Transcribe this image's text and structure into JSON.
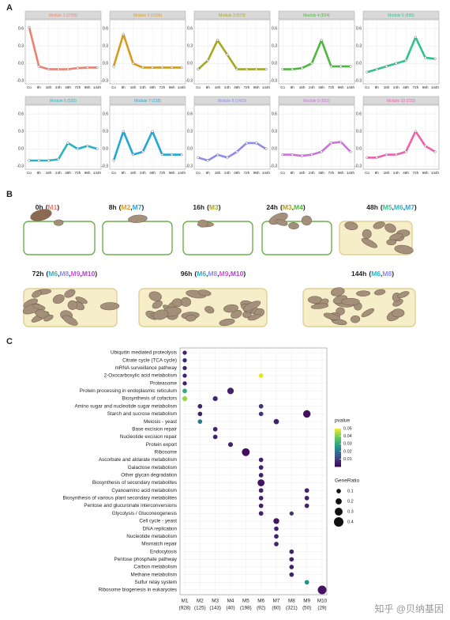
{
  "panel_labels": [
    "A",
    "B",
    "C"
  ],
  "chart_data": [
    {
      "type": "line",
      "title": "Module 1 (2783)",
      "categories": [
        "Co",
        "8h",
        "16h",
        "24h",
        "48h",
        "72h",
        "96h",
        "144h"
      ],
      "series": [
        {
          "color": "#f08070",
          "values": [
            0.62,
            -0.05,
            -0.1,
            -0.1,
            -0.1,
            -0.08,
            -0.07,
            -0.07
          ]
        }
      ],
      "ylim": [
        -0.35,
        0.75
      ],
      "yticks": [
        -0.3,
        {
          "value": 0,
          "label": "0.0"
        },
        0.3,
        0.6
      ],
      "grid": true
    },
    {
      "type": "line",
      "title": "Module 2 (1036)",
      "categories": [
        "Co",
        "8h",
        "16h",
        "24h",
        "48h",
        "72h",
        "96h",
        "144h"
      ],
      "series": [
        {
          "color": "#d99a1c",
          "values": [
            -0.05,
            0.5,
            0.0,
            -0.07,
            -0.07,
            -0.07,
            -0.07,
            -0.07
          ]
        }
      ],
      "ylim": [
        -0.35,
        0.75
      ],
      "yticks": [
        -0.3,
        {
          "value": 0,
          "label": "0.0"
        },
        0.3,
        0.6
      ],
      "grid": true
    },
    {
      "type": "line",
      "title": "Module 3 (573)",
      "categories": [
        "Co",
        "8h",
        "16h",
        "24h",
        "48h",
        "72h",
        "96h",
        "144h"
      ],
      "series": [
        {
          "color": "#a3a81e",
          "values": [
            -0.1,
            0.05,
            0.4,
            0.15,
            -0.1,
            -0.1,
            -0.1,
            -0.1
          ]
        }
      ],
      "ylim": [
        -0.35,
        0.75
      ],
      "yticks": [
        -0.3,
        {
          "value": 0,
          "label": "0.0"
        },
        0.3,
        0.6
      ],
      "grid": true
    },
    {
      "type": "line",
      "title": "Module 4 (834)",
      "categories": [
        "Co",
        "8h",
        "16h",
        "24h",
        "48h",
        "72h",
        "96h",
        "144h"
      ],
      "series": [
        {
          "color": "#4cb83c",
          "values": [
            -0.1,
            -0.1,
            -0.08,
            0.0,
            0.4,
            -0.05,
            -0.05,
            -0.05
          ]
        }
      ],
      "ylim": [
        -0.35,
        0.75
      ],
      "yticks": [
        -0.3,
        {
          "value": 0,
          "label": "0.0"
        },
        0.3,
        0.6
      ],
      "grid": true
    },
    {
      "type": "line",
      "title": "Module 5 (835)",
      "categories": [
        "Co",
        "8h",
        "16h",
        "24h",
        "48h",
        "72h",
        "96h",
        "144h"
      ],
      "series": [
        {
          "color": "#2ec48c",
          "values": [
            -0.15,
            -0.1,
            -0.05,
            0.0,
            0.05,
            0.45,
            0.1,
            0.08
          ]
        }
      ],
      "ylim": [
        -0.35,
        0.75
      ],
      "yticks": [
        -0.3,
        {
          "value": 0,
          "label": "0.0"
        },
        0.3,
        0.6
      ],
      "grid": true
    },
    {
      "type": "line",
      "title": "Module 6 (535)",
      "categories": [
        "Co",
        "8h",
        "16h",
        "24h",
        "48h",
        "72h",
        "96h",
        "144h"
      ],
      "series": [
        {
          "color": "#26b4c4",
          "values": [
            -0.2,
            -0.2,
            -0.2,
            -0.18,
            0.1,
            0.0,
            0.05,
            0.0
          ]
        }
      ],
      "ylim": [
        -0.35,
        0.75
      ],
      "yticks": [
        -0.3,
        {
          "value": 0,
          "label": "0.0"
        },
        0.3,
        0.6
      ],
      "grid": true
    },
    {
      "type": "line",
      "title": "Module 7 (218)",
      "categories": [
        "Co",
        "8h",
        "16h",
        "24h",
        "48h",
        "72h",
        "96h",
        "144h"
      ],
      "series": [
        {
          "color": "#1ea8d8",
          "values": [
            -0.2,
            0.3,
            -0.1,
            -0.05,
            0.3,
            -0.1,
            -0.1,
            -0.1
          ]
        }
      ],
      "ylim": [
        -0.35,
        0.75
      ],
      "yticks": [
        -0.3,
        {
          "value": 0,
          "label": "0.0"
        },
        0.3,
        0.6
      ],
      "grid": true
    },
    {
      "type": "line",
      "title": "Module 8 (1483)",
      "categories": [
        "Co",
        "8h",
        "16h",
        "24h",
        "48h",
        "72h",
        "96h",
        "144h"
      ],
      "series": [
        {
          "color": "#8c8cf0",
          "values": [
            -0.15,
            -0.2,
            -0.1,
            -0.15,
            -0.05,
            0.1,
            0.1,
            0.0
          ]
        }
      ],
      "ylim": [
        -0.35,
        0.75
      ],
      "yticks": [
        -0.3,
        {
          "value": 0,
          "label": "0.0"
        },
        0.3,
        0.6
      ],
      "grid": true
    },
    {
      "type": "line",
      "title": "Module 9 (853)",
      "categories": [
        "Co",
        "8h",
        "16h",
        "24h",
        "48h",
        "72h",
        "96h",
        "144h"
      ],
      "series": [
        {
          "color": "#d070e0",
          "values": [
            -0.1,
            -0.1,
            -0.12,
            -0.1,
            -0.05,
            0.1,
            0.12,
            -0.05
          ]
        }
      ],
      "ylim": [
        -0.35,
        0.75
      ],
      "yticks": [
        -0.3,
        {
          "value": 0,
          "label": "0.0"
        },
        0.3,
        0.6
      ],
      "grid": true
    },
    {
      "type": "line",
      "title": "Module 10 (233)",
      "categories": [
        "Co",
        "8h",
        "16h",
        "24h",
        "48h",
        "72h",
        "96h",
        "144h"
      ],
      "series": [
        {
          "color": "#f060b0",
          "values": [
            -0.15,
            -0.15,
            -0.1,
            -0.1,
            -0.05,
            0.3,
            0.05,
            -0.05
          ]
        }
      ],
      "ylim": [
        -0.35,
        0.75
      ],
      "yticks": [
        -0.3,
        {
          "value": 0,
          "label": "0.0"
        },
        0.3,
        0.6
      ],
      "grid": true
    },
    {
      "type": "dot",
      "categories": [
        "M1",
        "M2",
        "M3",
        "M4",
        "M5",
        "M6",
        "M7",
        "M8",
        "M9",
        "M10"
      ],
      "category_counts": [
        "(928)",
        "(125)",
        "(143)",
        "(40)",
        "(198)",
        "(92)",
        "(60)",
        "(321)",
        "(50)",
        "(29)"
      ],
      "terms": [
        "Ubiquitin mediated proteolysis",
        "Citrate cycle (TCA cycle)",
        "mRNA surveillance pathway",
        "2-Oxocarboxylic acid metabolism",
        "Proteasome",
        "Protein processing in endoplasmic reticulum",
        "Biosynthesis of cofactors",
        "Amino sugar and nucleotide sugar metabolism",
        "Starch and sucrose metabolism",
        "Meiosis - yeast",
        "Base excision repair",
        "Nucleotide excision repair",
        "Protein export",
        "Ribosome",
        "Ascorbate and aldarate metabolism",
        "Galactose metabolism",
        "Other glycan degradation",
        "Biosynthesis of secondary metabolites",
        "Cyanoamino acid metabolism",
        "Biosynthesis of various plant secondary metabolites",
        "Pentose and glucuronate interconversions",
        "Glycolysis / Gluconeogenesis",
        "Cell cycle - yeast",
        "DNA replication",
        "Nucleotide metabolism",
        "Mismatch repair",
        "Endocytosis",
        "Pentose phosphate pathway",
        "Carbon metabolism",
        "Methane metabolism",
        "Sulfur relay system",
        "Ribosome biogenesis in eukaryotes"
      ],
      "points": [
        {
          "x": "M1",
          "y": "Ubiquitin mediated proteolysis",
          "pvalue": 0.005,
          "gene_ratio": 0.08
        },
        {
          "x": "M1",
          "y": "Citrate cycle (TCA cycle)",
          "pvalue": 0.005,
          "gene_ratio": 0.08
        },
        {
          "x": "M1",
          "y": "mRNA surveillance pathway",
          "pvalue": 0.005,
          "gene_ratio": 0.08
        },
        {
          "x": "M1",
          "y": "2-Oxocarboxylic acid metabolism",
          "pvalue": 0.005,
          "gene_ratio": 0.08
        },
        {
          "x": "M1",
          "y": "Proteasome",
          "pvalue": 0.005,
          "gene_ratio": 0.08
        },
        {
          "x": "M1",
          "y": "Protein processing in endoplasmic reticulum",
          "pvalue": 0.03,
          "gene_ratio": 0.1
        },
        {
          "x": "M1",
          "y": "Biosynthesis of cofactors",
          "pvalue": 0.042,
          "gene_ratio": 0.12
        },
        {
          "x": "M2",
          "y": "Amino sugar and nucleotide sugar metabolism",
          "pvalue": 0.005,
          "gene_ratio": 0.1
        },
        {
          "x": "M2",
          "y": "Starch and sucrose metabolism",
          "pvalue": 0.005,
          "gene_ratio": 0.1
        },
        {
          "x": "M2",
          "y": "Meiosis - yeast",
          "pvalue": 0.02,
          "gene_ratio": 0.1
        },
        {
          "x": "M3",
          "y": "Biosynthesis of cofactors",
          "pvalue": 0.005,
          "gene_ratio": 0.12
        },
        {
          "x": "M3",
          "y": "Base excision repair",
          "pvalue": 0.005,
          "gene_ratio": 0.1
        },
        {
          "x": "M3",
          "y": "Nucleotide excision repair",
          "pvalue": 0.005,
          "gene_ratio": 0.1
        },
        {
          "x": "M4",
          "y": "Protein processing in endoplasmic reticulum",
          "pvalue": 0.005,
          "gene_ratio": 0.22
        },
        {
          "x": "M4",
          "y": "Protein export",
          "pvalue": 0.005,
          "gene_ratio": 0.12
        },
        {
          "x": "M5",
          "y": "Ribosome",
          "pvalue": 0.002,
          "gene_ratio": 0.3
        },
        {
          "x": "M6",
          "y": "2-Oxocarboxylic acid metabolism",
          "pvalue": 0.048,
          "gene_ratio": 0.1
        },
        {
          "x": "M6",
          "y": "Amino sugar and nucleotide sugar metabolism",
          "pvalue": 0.008,
          "gene_ratio": 0.1
        },
        {
          "x": "M6",
          "y": "Starch and sucrose metabolism",
          "pvalue": 0.008,
          "gene_ratio": 0.1
        },
        {
          "x": "M6",
          "y": "Ascorbate and aldarate metabolism",
          "pvalue": 0.005,
          "gene_ratio": 0.1
        },
        {
          "x": "M6",
          "y": "Galactose metabolism",
          "pvalue": 0.005,
          "gene_ratio": 0.1
        },
        {
          "x": "M6",
          "y": "Other glycan degradation",
          "pvalue": 0.005,
          "gene_ratio": 0.1
        },
        {
          "x": "M6",
          "y": "Biosynthesis of secondary metabolites",
          "pvalue": 0.003,
          "gene_ratio": 0.25
        },
        {
          "x": "M6",
          "y": "Cyanoamino acid metabolism",
          "pvalue": 0.005,
          "gene_ratio": 0.1
        },
        {
          "x": "M6",
          "y": "Biosynthesis of various plant secondary metabolites",
          "pvalue": 0.005,
          "gene_ratio": 0.1
        },
        {
          "x": "M6",
          "y": "Pentose and glucuronate interconversions",
          "pvalue": 0.005,
          "gene_ratio": 0.1
        },
        {
          "x": "M6",
          "y": "Glycolysis / Gluconeogenesis",
          "pvalue": 0.005,
          "gene_ratio": 0.1
        },
        {
          "x": "M7",
          "y": "Meiosis - yeast",
          "pvalue": 0.005,
          "gene_ratio": 0.15
        },
        {
          "x": "M7",
          "y": "Cell cycle - yeast",
          "pvalue": 0.003,
          "gene_ratio": 0.18
        },
        {
          "x": "M7",
          "y": "DNA replication",
          "pvalue": 0.005,
          "gene_ratio": 0.1
        },
        {
          "x": "M7",
          "y": "Nucleotide metabolism",
          "pvalue": 0.005,
          "gene_ratio": 0.1
        },
        {
          "x": "M7",
          "y": "Mismatch repair",
          "pvalue": 0.005,
          "gene_ratio": 0.1
        },
        {
          "x": "M8",
          "y": "Glycolysis / Gluconeogenesis",
          "pvalue": 0.008,
          "gene_ratio": 0.08
        },
        {
          "x": "M8",
          "y": "Endocytosis",
          "pvalue": 0.005,
          "gene_ratio": 0.1
        },
        {
          "x": "M8",
          "y": "Pentose phosphate pathway",
          "pvalue": 0.005,
          "gene_ratio": 0.1
        },
        {
          "x": "M8",
          "y": "Carbon metabolism",
          "pvalue": 0.005,
          "gene_ratio": 0.1
        },
        {
          "x": "M8",
          "y": "Methane metabolism",
          "pvalue": 0.005,
          "gene_ratio": 0.1
        },
        {
          "x": "M9",
          "y": "Starch and sucrose metabolism",
          "pvalue": 0.003,
          "gene_ratio": 0.28
        },
        {
          "x": "M9",
          "y": "Cyanoamino acid metabolism",
          "pvalue": 0.005,
          "gene_ratio": 0.1
        },
        {
          "x": "M9",
          "y": "Biosynthesis of various plant secondary metabolites",
          "pvalue": 0.005,
          "gene_ratio": 0.1
        },
        {
          "x": "M9",
          "y": "Pentose and glucuronate interconversions",
          "pvalue": 0.005,
          "gene_ratio": 0.1
        },
        {
          "x": "M9",
          "y": "Sulfur relay system",
          "pvalue": 0.025,
          "gene_ratio": 0.1
        },
        {
          "x": "M10",
          "y": "Ribosome biogenesis in eukaryotes",
          "pvalue": 0.003,
          "gene_ratio": 0.35
        }
      ],
      "color_title": "pvalue",
      "color_lim": [
        0,
        0.05
      ],
      "color_ticks": [
        0.01,
        0.02,
        0.03,
        0.04,
        0.05
      ],
      "size_title": "GeneRatio",
      "size_ticks": [
        0.1,
        0.2,
        0.3,
        0.4
      ],
      "grid": true
    }
  ],
  "diagram": {
    "module_colors": {
      "M1": "#f08070",
      "M2": "#e89a20",
      "M3": "#b0a41c",
      "M4": "#4cb83c",
      "M5": "#2ec48c",
      "M6": "#26b4c4",
      "M7": "#1ea8d8",
      "M8": "#8c8cf0",
      "M9": "#d050e0",
      "M10": "#b040d0"
    },
    "stages": [
      {
        "time": "0h",
        "modules": [
          "M1"
        ]
      },
      {
        "time": "8h",
        "modules": [
          "M2",
          "M7"
        ]
      },
      {
        "time": "16h",
        "modules": [
          "M3"
        ]
      },
      {
        "time": "24h",
        "modules": [
          "M3",
          "M4"
        ]
      },
      {
        "time": "48h",
        "modules": [
          "M5",
          "M6",
          "M7"
        ]
      },
      {
        "time": "72h",
        "modules": [
          "M6",
          "M8",
          "M9",
          "M10"
        ]
      },
      {
        "time": "96h",
        "modules": [
          "M6",
          "M8",
          "M9",
          "M10"
        ]
      },
      {
        "time": "144h",
        "modules": [
          "M6",
          "M8"
        ]
      }
    ]
  },
  "watermark": "知乎 @贝纳基因"
}
